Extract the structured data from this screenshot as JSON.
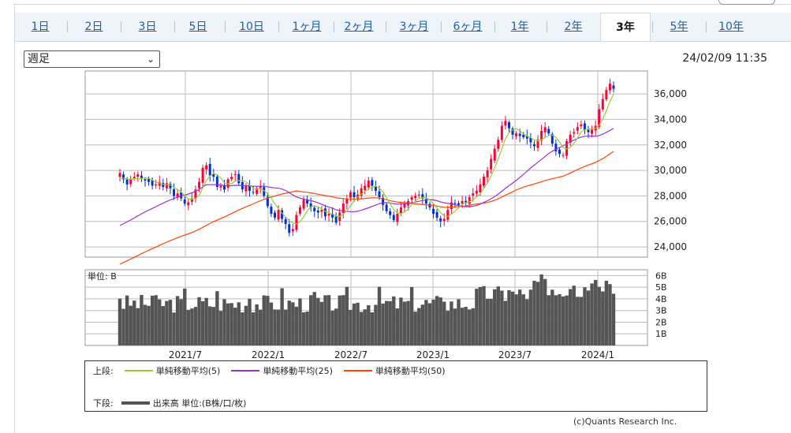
{
  "tabs": [
    "1日",
    "2日",
    "3日",
    "5日",
    "10日",
    "1ヶ月",
    "2ヶ月",
    "3ヶ月",
    "6ヶ月",
    "1年",
    "2年",
    "3年",
    "5年",
    "10年"
  ],
  "active_tab": "3年",
  "period_select": "週足",
  "timestamp": "24/02/09 11:35",
  "volume_unit_label": "単位: B",
  "legend": {
    "upper_label": "上段:",
    "lower_label": "下段:",
    "ma5": "単純移動平均(5)",
    "ma25": "単純移動平均(25)",
    "ma50": "単純移動平均(50)",
    "volume": "出来高 単位:(B株/口/枚)"
  },
  "credit": "(c)Quants Research Inc.",
  "colors": {
    "up": "#ff0033",
    "down": "#0033cc",
    "ma5": "#99cc33",
    "ma25": "#9933cc",
    "ma50": "#ff4400",
    "volume": "#555555"
  },
  "chart_data": {
    "type": "candlestick",
    "price_axis": {
      "ticks": [
        24000,
        26000,
        28000,
        30000,
        32000,
        34000,
        36000
      ],
      "range": [
        23200,
        37800
      ]
    },
    "volume_axis": {
      "ticks": [
        "1B",
        "2B",
        "3B",
        "4B",
        "5B",
        "6B"
      ],
      "range": [
        0,
        6.5
      ]
    },
    "x_ticks": [
      "2021/7",
      "2022/1",
      "2022/7",
      "2023/1",
      "2023/7",
      "2024/1"
    ],
    "series": [
      {
        "name": "単純移動平均(5)"
      },
      {
        "name": "単純移動平均(25)"
      },
      {
        "name": "単純移動平均(50)"
      },
      {
        "name": "出来高 単位:(B株/口/枚)"
      }
    ],
    "weekly_close": [
      29800,
      29300,
      28900,
      29300,
      29500,
      29700,
      29400,
      29200,
      29100,
      28800,
      28900,
      29100,
      28700,
      29000,
      28600,
      28000,
      28200,
      27800,
      27400,
      27500,
      27800,
      28500,
      29100,
      30200,
      30400,
      29600,
      29500,
      28700,
      28800,
      28500,
      29300,
      29500,
      29700,
      29000,
      28500,
      28800,
      28400,
      28300,
      28600,
      28800,
      28000,
      27200,
      26600,
      26300,
      26900,
      26200,
      25800,
      25100,
      25400,
      26500,
      27100,
      27700,
      27400,
      27100,
      26800,
      26700,
      26900,
      26400,
      26600,
      26300,
      25900,
      26700,
      27400,
      27800,
      28300,
      27900,
      28100,
      28600,
      28800,
      29200,
      28800,
      28400,
      27900,
      27300,
      26800,
      26500,
      26100,
      26600,
      27100,
      27400,
      27600,
      27900,
      28000,
      28100,
      27800,
      27400,
      27100,
      26600,
      26300,
      26000,
      26200,
      26900,
      27500,
      27400,
      27300,
      27600,
      27500,
      27900,
      28200,
      28400,
      28900,
      29500,
      30000,
      30900,
      31700,
      32400,
      33500,
      33900,
      33300,
      32800,
      32900,
      32700,
      32600,
      32500,
      32200,
      31900,
      32400,
      33100,
      33400,
      32900,
      32100,
      31500,
      31300,
      31200,
      32300,
      32800,
      33000,
      33400,
      33600,
      33200,
      33000,
      33200,
      33500,
      34800,
      35600,
      36300,
      36800,
      36400
    ]
  }
}
